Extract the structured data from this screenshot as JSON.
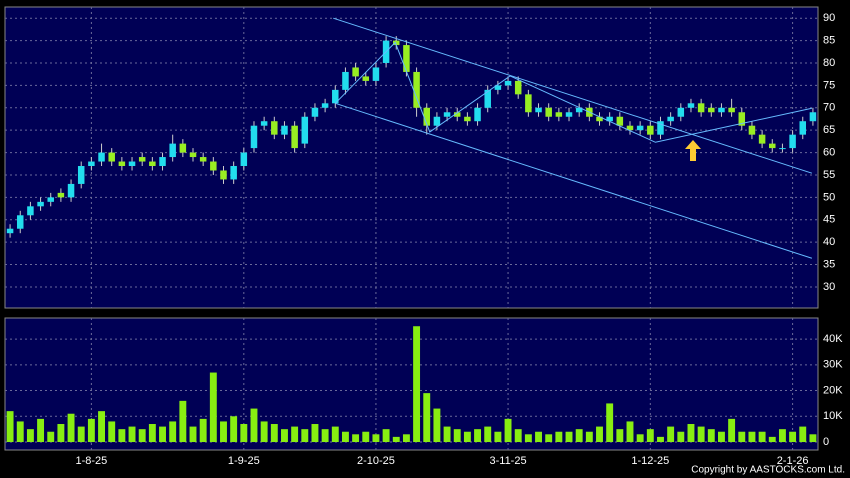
{
  "chart_data": [
    {
      "type": "candlestick",
      "open": [
        42,
        43,
        46,
        48,
        49,
        51,
        50,
        53,
        57,
        58,
        60,
        58,
        57,
        59,
        58,
        57,
        59,
        62,
        60,
        59,
        58,
        56,
        54,
        57,
        61,
        66,
        67,
        64,
        66,
        62,
        68,
        70,
        71,
        74,
        79,
        77,
        76,
        80,
        85,
        84,
        78,
        70,
        66,
        68,
        69,
        68,
        67,
        70,
        74,
        75,
        76,
        73,
        69,
        70,
        69,
        68,
        69,
        70,
        68,
        67,
        68,
        66,
        65,
        66,
        64,
        67,
        68,
        70,
        71,
        70,
        69,
        70,
        69,
        66,
        64,
        62,
        61,
        61,
        64,
        67
      ],
      "high": [
        44,
        47,
        49,
        50,
        51,
        52,
        54,
        58,
        59,
        62,
        61,
        59,
        59,
        60,
        59,
        60,
        64,
        63,
        61,
        60,
        59,
        57,
        58,
        61,
        67,
        68,
        68,
        67,
        67,
        69,
        71,
        72,
        75,
        79,
        80,
        78,
        80,
        86,
        86,
        85,
        79,
        71,
        69,
        70,
        70,
        69,
        71,
        75,
        76,
        77,
        77,
        74,
        71,
        71,
        70,
        70,
        71,
        71,
        69,
        69,
        69,
        67,
        67,
        67,
        68,
        69,
        71,
        72,
        72,
        71,
        71,
        72,
        70,
        67,
        65,
        63,
        62,
        65,
        68,
        70
      ],
      "low": [
        41,
        42,
        45,
        47,
        48,
        49,
        49,
        52,
        56,
        57,
        57,
        56,
        56,
        57,
        56,
        56,
        58,
        59,
        58,
        57,
        55,
        53,
        53,
        56,
        60,
        65,
        63,
        63,
        60,
        61,
        67,
        69,
        70,
        73,
        76,
        75,
        75,
        79,
        83,
        77,
        68,
        64,
        65,
        67,
        67,
        66,
        66,
        69,
        73,
        74,
        72,
        68,
        68,
        67,
        67,
        67,
        68,
        67,
        66,
        66,
        65,
        64,
        64,
        63,
        63,
        66,
        67,
        69,
        68,
        68,
        68,
        68,
        65,
        63,
        61,
        60,
        60,
        60,
        63,
        66
      ],
      "close": [
        43,
        46,
        48,
        49,
        50,
        50,
        53,
        57,
        58,
        60,
        58,
        57,
        58,
        58,
        57,
        59,
        62,
        60,
        59,
        58,
        56,
        54,
        57,
        60,
        66,
        67,
        64,
        66,
        61,
        68,
        70,
        71,
        74,
        78,
        77,
        76,
        79,
        85,
        84,
        78,
        70,
        66,
        68,
        69,
        68,
        67,
        70,
        74,
        75,
        76,
        73,
        69,
        70,
        68,
        68,
        69,
        70,
        68,
        67,
        68,
        66,
        65,
        66,
        64,
        67,
        68,
        70,
        71,
        69,
        69,
        70,
        69,
        66,
        64,
        62,
        61,
        61,
        64,
        67,
        69
      ],
      "up_color": "#22ddee",
      "down_color": "#99ee22",
      "ylim": [
        25.3,
        92.5
      ],
      "yticks": [
        30,
        35,
        40,
        45,
        50,
        55,
        60,
        65,
        70,
        75,
        80,
        85,
        90
      ],
      "grid": true,
      "lines": [
        {
          "x": [
            31.8,
            78.9
          ],
          "y": [
            90,
            55.4
          ]
        },
        {
          "x": [
            32.0,
            78.9
          ],
          "y": [
            71.0,
            36.4
          ]
        },
        {
          "x": [
            32.0,
            37.9,
            41.3,
            49.2,
            63.5,
            78.9
          ],
          "y": [
            71.0,
            84.6,
            64.6,
            77.1,
            62.3,
            69.9
          ]
        }
      ],
      "line_color": "#66bbff",
      "arrow": {
        "x": 67.2,
        "y": 62.8,
        "color": "#ffcc33"
      }
    },
    {
      "type": "bar",
      "categories": [
        null,
        null,
        null,
        null,
        null,
        null,
        null,
        null,
        "1-8-25",
        null,
        null,
        null,
        null,
        null,
        null,
        null,
        null,
        null,
        null,
        null,
        null,
        null,
        null,
        "1-9-25",
        null,
        null,
        null,
        null,
        null,
        null,
        null,
        null,
        null,
        null,
        null,
        null,
        "2-10-25",
        null,
        null,
        null,
        null,
        null,
        null,
        null,
        null,
        null,
        null,
        null,
        null,
        "3-11-25",
        null,
        null,
        null,
        null,
        null,
        null,
        null,
        null,
        null,
        null,
        null,
        null,
        null,
        "1-12-25",
        null,
        null,
        null,
        null,
        null,
        null,
        null,
        null,
        null,
        null,
        null,
        null,
        null,
        "2-1-26",
        null,
        null
      ],
      "values": [
        12000,
        8000,
        5000,
        9000,
        4000,
        7000,
        11000,
        6000,
        9000,
        12000,
        8000,
        5000,
        6000,
        5000,
        7000,
        6000,
        8000,
        16000,
        6000,
        9000,
        27000,
        8000,
        10000,
        7000,
        13000,
        8000,
        7000,
        5000,
        6000,
        5000,
        7000,
        5000,
        6000,
        4000,
        3000,
        4000,
        3000,
        5000,
        2000,
        3000,
        45000,
        19000,
        13000,
        6000,
        5000,
        4000,
        5000,
        6000,
        4000,
        9000,
        5000,
        3000,
        4000,
        3000,
        4000,
        4000,
        5000,
        4000,
        6000,
        15000,
        5000,
        8000,
        3000,
        5000,
        2000,
        6000,
        4000,
        7000,
        6000,
        5000,
        4000,
        9000,
        4000,
        4000,
        4000,
        2000,
        5000,
        4000,
        6000,
        3000
      ],
      "color": "#88ee11",
      "ylim": [
        -3100,
        48200
      ],
      "yticks": [
        0,
        {
          "value": 10000,
          "label": "10K"
        },
        {
          "value": 20000,
          "label": "20K"
        },
        {
          "value": 30000,
          "label": "30K"
        },
        {
          "value": 40000,
          "label": "40K"
        }
      ],
      "grid": true
    }
  ],
  "copyright": "Copyright by AASTOCKS.com Ltd."
}
